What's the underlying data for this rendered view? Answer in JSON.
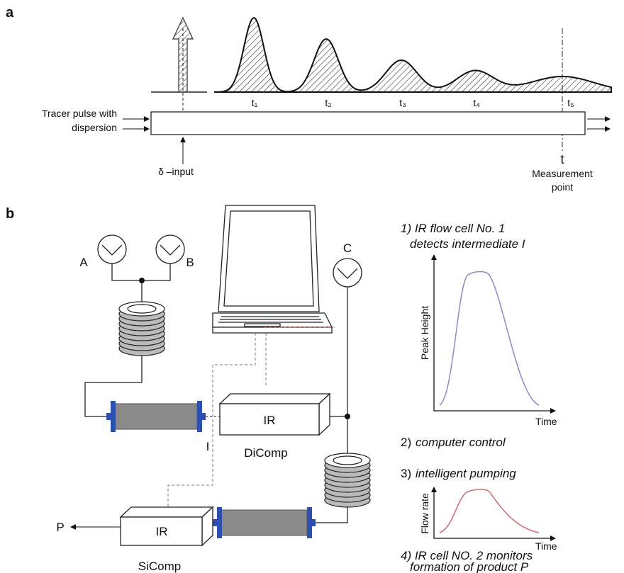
{
  "panel_a": {
    "label": "a",
    "tracer_label": [
      "Tracer pulse with",
      "dispersion"
    ],
    "times": [
      "t₁",
      "t₂",
      "t₃",
      "t₄",
      "t₅"
    ],
    "input_label": "δ –input",
    "point_symbol": "t",
    "measurement_label": [
      "Measurement",
      "point"
    ]
  },
  "panel_b": {
    "label": "b",
    "pumps": [
      "A",
      "B",
      "C"
    ],
    "dicomp": {
      "box": "IR",
      "name": "DiComp",
      "intermediate": "I"
    },
    "sicomp": {
      "box": "IR",
      "name": "SiComp",
      "product": "P"
    },
    "notes": {
      "step1": [
        "1) IR flow cell No. 1",
        "detects intermediate I"
      ],
      "graph1": {
        "y_label": "Peak Height",
        "x_label": "Time"
      },
      "step2": {
        "number": "2)",
        "text": "computer control"
      },
      "step3": {
        "number": "3)",
        "text": "intelligent pumping"
      },
      "graph2": {
        "y_label": "Flow rate",
        "x_label": "Time"
      },
      "step4": [
        "4) IR cell NO. 2 monitors",
        "formation of product P"
      ]
    }
  }
}
